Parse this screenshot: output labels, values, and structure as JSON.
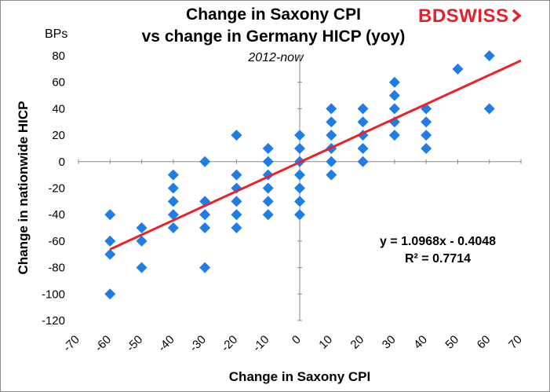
{
  "brand": {
    "logo_part1": "BD",
    "logo_part2": "SWISS",
    "color": "#e3222a"
  },
  "chart_data": {
    "type": "scatter",
    "title": "Change in Saxony CPI",
    "title_line2": "vs change in Germany HICP (yoy)",
    "subtitle": "2012-now",
    "unit_label": "BPs",
    "xlabel": "Change in Saxony CPI",
    "ylabel": "Change in nationwide HICP",
    "xlim": [
      -70,
      70
    ],
    "ylim": [
      -120,
      80
    ],
    "xticks": [
      -70,
      -60,
      -50,
      -40,
      -30,
      -20,
      -10,
      0,
      10,
      20,
      30,
      40,
      50,
      60,
      70
    ],
    "yticks": [
      80,
      60,
      40,
      20,
      0,
      -20,
      -40,
      -60,
      -80,
      -100,
      -120
    ],
    "grid": false,
    "marker": "diamond",
    "marker_color": "#1f7de6",
    "trend_color": "#e8242a",
    "points": [
      [
        -60,
        -40
      ],
      [
        -60,
        -60
      ],
      [
        -60,
        -70
      ],
      [
        -60,
        -100
      ],
      [
        -50,
        -50
      ],
      [
        -50,
        -60
      ],
      [
        -50,
        -80
      ],
      [
        -40,
        -10
      ],
      [
        -40,
        -20
      ],
      [
        -40,
        -30
      ],
      [
        -40,
        -40
      ],
      [
        -40,
        -50
      ],
      [
        -30,
        0
      ],
      [
        -30,
        -30
      ],
      [
        -30,
        -40
      ],
      [
        -30,
        -50
      ],
      [
        -30,
        -80
      ],
      [
        -20,
        20
      ],
      [
        -20,
        -10
      ],
      [
        -20,
        -20
      ],
      [
        -20,
        -30
      ],
      [
        -20,
        -40
      ],
      [
        -20,
        -50
      ],
      [
        -10,
        10
      ],
      [
        -10,
        0
      ],
      [
        -10,
        -10
      ],
      [
        -10,
        -20
      ],
      [
        -10,
        -30
      ],
      [
        -10,
        -40
      ],
      [
        0,
        20
      ],
      [
        0,
        10
      ],
      [
        0,
        0
      ],
      [
        0,
        -10
      ],
      [
        0,
        -20
      ],
      [
        0,
        -30
      ],
      [
        0,
        -40
      ],
      [
        10,
        40
      ],
      [
        10,
        30
      ],
      [
        10,
        20
      ],
      [
        10,
        10
      ],
      [
        10,
        0
      ],
      [
        10,
        -10
      ],
      [
        20,
        40
      ],
      [
        20,
        30
      ],
      [
        20,
        20
      ],
      [
        20,
        10
      ],
      [
        20,
        0
      ],
      [
        30,
        60
      ],
      [
        30,
        50
      ],
      [
        30,
        40
      ],
      [
        30,
        30
      ],
      [
        30,
        20
      ],
      [
        40,
        40
      ],
      [
        40,
        30
      ],
      [
        40,
        20
      ],
      [
        40,
        10
      ],
      [
        50,
        70
      ],
      [
        60,
        80
      ],
      [
        60,
        40
      ]
    ],
    "trendline": {
      "slope": 1.0968,
      "intercept": -0.4048,
      "x_from": -60,
      "x_to": 70
    },
    "equation": "y = 1.0968x - 0.4048",
    "r_squared": "R² = 0.7714"
  }
}
